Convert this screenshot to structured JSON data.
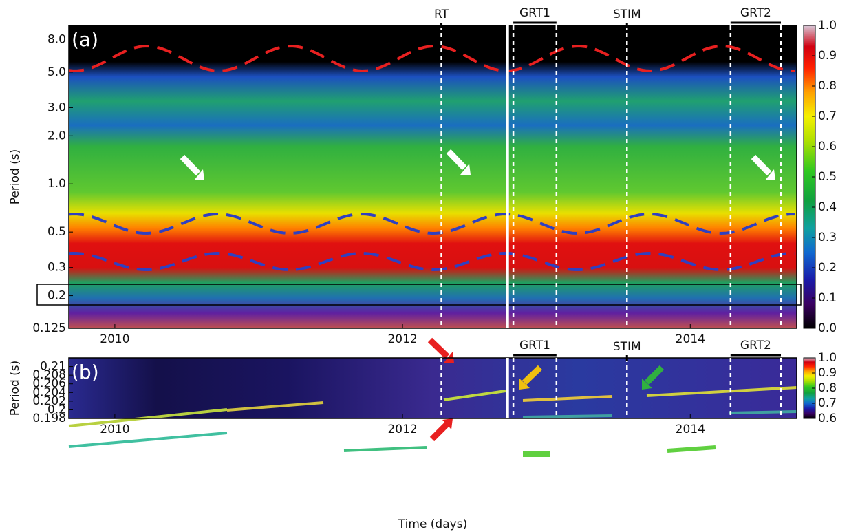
{
  "chart_data": [
    {
      "type": "heatmap",
      "panel_label": "(a)",
      "y_label": "Period (s)",
      "log_y": true,
      "xlim": [
        2009.68,
        2014.74
      ],
      "xticks": [
        2010,
        2012,
        2014
      ],
      "ylim": [
        0.125,
        9.8
      ],
      "yticks": [
        0.125,
        0.2,
        {
          "value": 0.3,
          "label": "0.3"
        },
        {
          "value": 0.5,
          "label": "0.5"
        },
        {
          "value": 1,
          "label": "1.0"
        },
        {
          "value": 2,
          "label": "2.0"
        },
        {
          "value": 3,
          "label": "3.0"
        },
        {
          "value": 5,
          "label": "5.0"
        },
        {
          "value": 8,
          "label": "8.0"
        }
      ],
      "annotations": [
        {
          "label": "RT",
          "x": 2012.27
        },
        {
          "label": "GRT1",
          "x0": 2012.77,
          "x1": 2013.07
        },
        {
          "label": "STIM",
          "x": 2013.56
        },
        {
          "label": "GRT2",
          "x0": 2014.28,
          "x1": 2014.63
        }
      ],
      "solid_lines": [
        2012.73
      ],
      "colorbar": {
        "lim": [
          0,
          1
        ],
        "ticks": [
          {
            "value": 0,
            "label": "0.0"
          },
          0.1,
          0.2,
          0.3,
          0.4,
          0.5,
          0.6,
          0.7,
          0.8,
          0.9,
          {
            "value": 1,
            "label": "1.0"
          }
        ]
      }
    },
    {
      "type": "heatmap",
      "panel_label": "(b)",
      "y_label": "Period (s)",
      "x_label": "Time (days)",
      "log_y": false,
      "xlim": [
        2009.68,
        2014.74
      ],
      "xticks": [
        2010,
        2012,
        2014
      ],
      "ylim": [
        0.198,
        0.212
      ],
      "yticks": [
        0.198,
        0.2,
        0.202,
        0.204,
        0.206,
        0.208,
        0.21
      ],
      "annotations": [
        {
          "label": "GRT1",
          "x0": 2012.77,
          "x1": 2013.07
        },
        {
          "label": "STIM",
          "x": 2013.56
        },
        {
          "label": "GRT2",
          "x0": 2014.28,
          "x1": 2014.63
        }
      ],
      "dashed_lines": [
        2012.27
      ],
      "solid_lines": [
        2012.73
      ],
      "colorbar": {
        "lim": [
          0.6,
          1
        ],
        "ticks": [
          0.6,
          0.7,
          0.8,
          0.9,
          {
            "value": 1,
            "label": "1.0"
          }
        ]
      }
    }
  ]
}
